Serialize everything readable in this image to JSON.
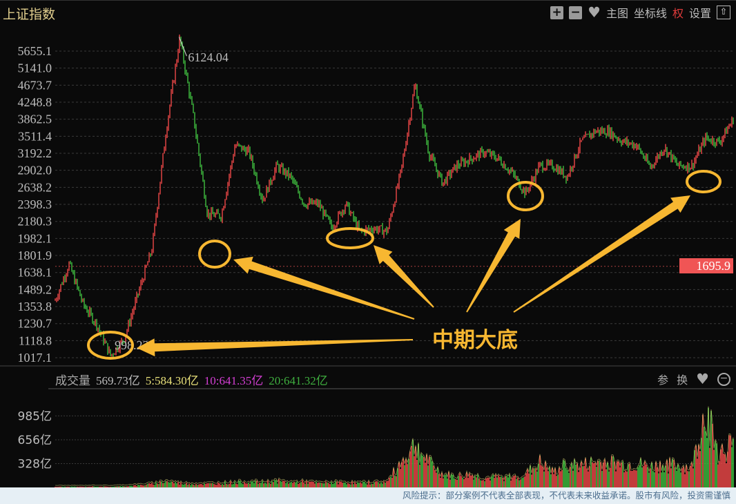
{
  "header": {
    "title": "上证指数",
    "toolbar": {
      "zoom_in_icon": "plus-square-icon",
      "zoom_out_icon": "minus-square-icon",
      "favorite_icon": "heart-icon",
      "main_chart": "主图",
      "axis_line": "坐标线",
      "rights": "权",
      "settings": "设置",
      "collapse_icon": "arrow-up-box-icon"
    }
  },
  "chart_data": [
    {
      "type": "line",
      "subtype": "candlestick-overview",
      "scale": "log",
      "ylim": [
        998.23,
        6124.04
      ],
      "y_ticks": [
        "5655.1",
        "5141.0",
        "4673.7",
        "4248.8",
        "3862.5",
        "3511.4",
        "3192.2",
        "2902.0",
        "2638.2",
        "2398.3",
        "2180.3",
        "1982.1",
        "1801.9",
        "1638.1",
        "1489.2",
        "1353.8",
        "1230.7",
        "1118.8",
        "1017.1"
      ],
      "grid": true,
      "current_value_label": "1695.9",
      "high_label": "6124.04",
      "low_label": "998.23",
      "close": [
        1402,
        1720,
        1375,
        1225,
        1029,
        1133,
        1460,
        1873,
        3600,
        6087,
        3903,
        2272,
        2250,
        3343,
        3217,
        2455,
        2977,
        2800,
        2408,
        2408,
        2103,
        2408,
        2063,
        2100,
        2063,
        2900,
        4700,
        3200,
        2700,
        2977,
        3095,
        3217,
        3100,
        2865,
        2552,
        2977,
        2977,
        2800,
        3400,
        3612,
        3612,
        3408,
        3343,
        2950,
        3300,
        2977,
        2977,
        3475,
        3400,
        3860
      ],
      "colors": {
        "up": "#f04848",
        "down": "#3fbf3f"
      }
    },
    {
      "type": "bar",
      "title": "成交量",
      "unit": "亿",
      "y_ticks": [
        "985亿",
        "656亿",
        "328亿"
      ],
      "ylim": [
        0,
        1300
      ],
      "values": [
        10,
        10,
        10,
        15,
        10,
        20,
        30,
        50,
        90,
        60,
        50,
        50,
        60,
        70,
        80,
        70,
        90,
        70,
        80,
        60,
        70,
        70,
        60,
        70,
        80,
        350,
        600,
        350,
        180,
        150,
        180,
        130,
        140,
        140,
        180,
        350,
        200,
        330,
        300,
        350,
        360,
        320,
        330,
        280,
        320,
        300,
        270,
        1100,
        450,
        650
      ],
      "legend": [
        {
          "label": "569.73亿",
          "color": "#bdbdbd"
        },
        {
          "label": "5:584.30亿",
          "color": "#e8e07a"
        },
        {
          "label": "10:641.35亿",
          "color": "#d43fd4"
        },
        {
          "label": "20:641.32亿",
          "color": "#3fae3f"
        }
      ]
    }
  ],
  "annotation": {
    "text": "中期大底",
    "color": "#f7b731"
  },
  "volume_toolbar": {
    "ref": "参",
    "switch": "换",
    "favorite_icon": "heart-icon",
    "zoom_icon": "zoom-out-icon"
  },
  "footer": {
    "disclaimer": "风险提示：部分案例不代表全部表现，不代表未来收益承诺。股市有风险，投资需谨慎"
  }
}
